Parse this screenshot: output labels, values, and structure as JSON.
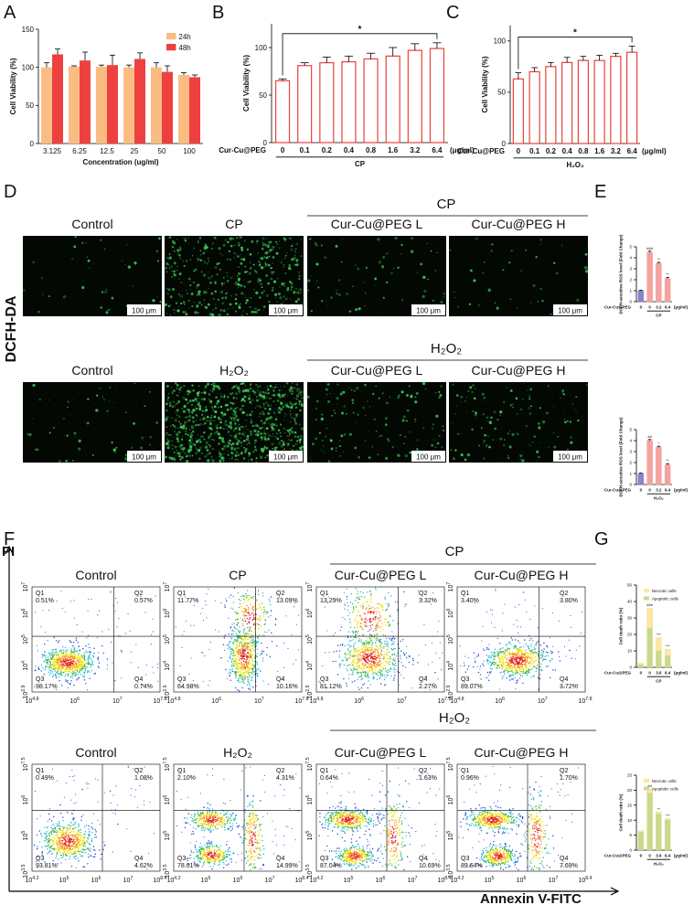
{
  "panel_letters": [
    "A",
    "B",
    "C",
    "D",
    "E",
    "F",
    "G"
  ],
  "chart_data": [
    {
      "type": "bar",
      "ylabel": "Cell Viability (%)",
      "xlabel": "Concentration (ug/ml)",
      "categories": [
        "3.125",
        "6.25",
        "12.5",
        "25",
        "50",
        "100"
      ],
      "series": [
        {
          "name": "24h",
          "color": "#f9bd84",
          "values": [
            100,
            101,
            101,
            100,
            100,
            90
          ],
          "errors": [
            6,
            1,
            2,
            3,
            6,
            3
          ]
        },
        {
          "name": "48h",
          "color": "#ef4040",
          "values": [
            117,
            109,
            103,
            111,
            94,
            87
          ],
          "errors": [
            7,
            11,
            13,
            8,
            8,
            3
          ]
        }
      ],
      "ylim": [
        0,
        150
      ],
      "yticks": [
        0,
        50,
        100,
        150
      ],
      "legend": "upper right"
    },
    {
      "type": "bar",
      "ylabel": "Cell Viability (%)",
      "row_label": "Cur-Cu@PEG",
      "categories": [
        "0",
        "0.1",
        "0.2",
        "0.4",
        "0.8",
        "1.6",
        "3.2",
        "6.4"
      ],
      "unit": "(μg/ml)",
      "group_label": "CP",
      "values": [
        65,
        81,
        84,
        85,
        88,
        91,
        97,
        99
      ],
      "errors": [
        2,
        3,
        6,
        6,
        6,
        9,
        7,
        6
      ],
      "color": "#e8413c",
      "hollow": true,
      "significance": "*",
      "ylim": [
        0,
        125
      ],
      "yticks": [
        0,
        50,
        100
      ]
    },
    {
      "type": "bar",
      "ylabel": "Cell Viability (%)",
      "row_label": "Cur-Cu@PEG",
      "categories": [
        "0",
        "0.1",
        "0.2",
        "0.4",
        "0.8",
        "1.6",
        "3.2",
        "6.4"
      ],
      "unit": "(μg/ml)",
      "group_label": "H₂O₂",
      "values": [
        63,
        70,
        75,
        79,
        81,
        81,
        85,
        89
      ],
      "errors": [
        6,
        4,
        4,
        5,
        4,
        5,
        3,
        6
      ],
      "color": "#e8413c",
      "hollow": true,
      "significance": "*",
      "ylim": [
        0,
        115
      ],
      "yticks": [
        0,
        50,
        100
      ]
    },
    {
      "type": "bar",
      "ylabel": "DCFH-sensitive ROS level (Fold Change)",
      "row_label": "Cur-Cu@PEG",
      "categories": [
        "0",
        "0",
        "3.2",
        "6.4"
      ],
      "unit": "(μg/ml)",
      "group_label": "CP",
      "values": [
        1,
        4.5,
        3.5,
        2.1
      ],
      "errors": [
        0.05,
        0.1,
        0.08,
        0.1
      ],
      "colors": [
        "#8585c8",
        "#f4a3a0",
        "#f4a3a0",
        "#f4a3a0"
      ],
      "annotations": [
        null,
        "###",
        "**",
        "**"
      ],
      "ylim": [
        0,
        5
      ],
      "yticks": [
        0,
        1,
        2,
        3,
        4,
        5
      ]
    },
    {
      "type": "bar",
      "ylabel": "DCFH-sensitive ROS level (Fold Change)",
      "row_label": "Cur-Cu@PEG",
      "categories": [
        "0",
        "0",
        "3.2",
        "6.4"
      ],
      "unit": "(μg/ml)",
      "group_label": "H₂O₂",
      "values": [
        1,
        4,
        3.4,
        1.8
      ],
      "errors": [
        0.05,
        0.1,
        0.08,
        0.1
      ],
      "colors": [
        "#8585c8",
        "#f4a3a0",
        "#f4a3a0",
        "#f4a3a0"
      ],
      "annotations": [
        null,
        "##",
        "*",
        "**"
      ],
      "ylim": [
        0,
        5
      ],
      "yticks": [
        0,
        1,
        2,
        3,
        4,
        5
      ]
    },
    {
      "type": "stacked_bar",
      "ylabel": "Cell death ratio (%)",
      "row_label": "Cur-Cu@PEG",
      "categories": [
        "0",
        "0",
        "3.6",
        "6.4"
      ],
      "unit": "(μg/ml)",
      "group_label": "CP",
      "series": [
        {
          "name": "Necrotic cells",
          "color": "#fde7a2",
          "values": [
            1,
            12,
            8,
            4
          ]
        },
        {
          "name": "Apoptotic cells",
          "color": "#c9d98c",
          "values": [
            1.5,
            24,
            10,
            7
          ]
        }
      ],
      "annotations": [
        null,
        "###",
        "***",
        "***"
      ],
      "ylim": [
        0,
        50
      ],
      "yticks": [
        0,
        10,
        20,
        30,
        40,
        50
      ],
      "legend": "top"
    },
    {
      "type": "stacked_bar",
      "ylabel": "Cell death ratio (%)",
      "row_label": "Cur-Cu@PEG",
      "categories": [
        "0",
        "0",
        "3.6",
        "6.4"
      ],
      "unit": "(μg/ml)",
      "group_label": "H₂O₂",
      "series": [
        {
          "name": "Necrotic cells",
          "color": "#fde7a2",
          "values": [
            0.5,
            1.5,
            0.7,
            0.5
          ]
        },
        {
          "name": "Apoptotic cells",
          "color": "#c9d98c",
          "values": [
            6,
            19,
            12,
            10
          ]
        }
      ],
      "annotations": [
        null,
        "##",
        "**",
        "***"
      ],
      "ylim": [
        0,
        25
      ],
      "yticks": [
        0,
        5,
        10,
        15,
        20,
        25
      ],
      "legend": "top"
    }
  ],
  "microscopy": {
    "stain": "DCFH-DA",
    "rows": [
      {
        "group": "CP",
        "columns": [
          "Control",
          "CP",
          "Cur-Cu@PEG L",
          "Cur-Cu@PEG H"
        ],
        "scale_bars": [
          "100 μm",
          "100 μm",
          "100 μm",
          "100 μm"
        ]
      },
      {
        "group": "H₂O₂",
        "columns": [
          "Control",
          "H₂O₂",
          "Cur-Cu@PEG L",
          "Cur-Cu@PEG H"
        ],
        "scale_bars": [
          "100 μm",
          "100 μm",
          "100 μm",
          "100 μm"
        ]
      }
    ]
  },
  "flow_cytometry": {
    "y_axis": "PI",
    "x_axis": "Annexin V-FITC",
    "rows": [
      {
        "group": "CP",
        "x_ticks": [
          {
            "base": "10",
            "exp": "4.8"
          },
          {
            "base": "10",
            "exp": "6"
          },
          {
            "base": "10",
            "exp": "7"
          },
          {
            "base": "10",
            "exp": "7.8"
          }
        ],
        "y_ticks": [
          {
            "base": "10",
            "exp": "2.9"
          },
          {
            "base": "10",
            "exp": "4"
          },
          {
            "base": "10",
            "exp": "5"
          },
          {
            "base": "10",
            "exp": "6"
          },
          {
            "base": "10",
            "exp": "7"
          }
        ],
        "plots": [
          {
            "title": "Control",
            "quadrants": [
              {
                "name": "Q1",
                "value": "0.51%"
              },
              {
                "name": "Q2",
                "value": "0.57%"
              },
              {
                "name": "Q3",
                "value": "98.17%"
              },
              {
                "name": "Q4",
                "value": "0.74%"
              }
            ]
          },
          {
            "title": "CP",
            "quadrants": [
              {
                "name": "Q1",
                "value": "11.77%"
              },
              {
                "name": "Q2",
                "value": "13.09%"
              },
              {
                "name": "Q3",
                "value": "64.98%"
              },
              {
                "name": "Q4",
                "value": "10.16%"
              }
            ]
          },
          {
            "title": "Cur-Cu@PEG L",
            "quadrants": [
              {
                "name": "Q1",
                "value": "13.29%"
              },
              {
                "name": "Q2",
                "value": "3.32%"
              },
              {
                "name": "Q3",
                "value": "81.12%"
              },
              {
                "name": "Q4",
                "value": "2.27%"
              }
            ]
          },
          {
            "title": "Cur-Cu@PEG H",
            "quadrants": [
              {
                "name": "Q1",
                "value": "3.40%"
              },
              {
                "name": "Q2",
                "value": "3.80%"
              },
              {
                "name": "Q3",
                "value": "89.07%"
              },
              {
                "name": "Q4",
                "value": "3.72%"
              }
            ]
          }
        ]
      },
      {
        "group": "H₂O₂",
        "x_ticks": [
          {
            "base": "10",
            "exp": "4.2"
          },
          {
            "base": "10",
            "exp": "5"
          },
          {
            "base": "10",
            "exp": "6"
          },
          {
            "base": "10",
            "exp": "7"
          },
          {
            "base": "10",
            "exp": "8.4"
          }
        ],
        "y_ticks": [
          {
            "base": "10",
            "exp": "3.5"
          },
          {
            "base": "10",
            "exp": "5"
          },
          {
            "base": "10",
            "exp": "6"
          },
          {
            "base": "10",
            "exp": "7.5"
          }
        ],
        "plots": [
          {
            "title": "Control",
            "quadrants": [
              {
                "name": "Q1",
                "value": "0.49%"
              },
              {
                "name": "Q2",
                "value": "1.08%"
              },
              {
                "name": "Q3",
                "value": "93.81%"
              },
              {
                "name": "Q4",
                "value": "4.62%"
              }
            ]
          },
          {
            "title": "H₂O₂",
            "quadrants": [
              {
                "name": "Q1",
                "value": "2.10%"
              },
              {
                "name": "Q2",
                "value": "4.31%"
              },
              {
                "name": "Q3",
                "value": "78.61%"
              },
              {
                "name": "Q4",
                "value": "14.99%"
              }
            ]
          },
          {
            "title": "Cur-Cu@PEG L",
            "quadrants": [
              {
                "name": "Q1",
                "value": "0.64%"
              },
              {
                "name": "Q2",
                "value": "1.63%"
              },
              {
                "name": "Q3",
                "value": "87.04%"
              },
              {
                "name": "Q4",
                "value": "10.69%"
              }
            ]
          },
          {
            "title": "Cur-Cu@PEG H",
            "quadrants": [
              {
                "name": "Q1",
                "value": "0.96%"
              },
              {
                "name": "Q2",
                "value": "1.70%"
              },
              {
                "name": "Q3",
                "value": "89.64%"
              },
              {
                "name": "Q4",
                "value": "7.69%"
              }
            ]
          }
        ]
      }
    ]
  }
}
